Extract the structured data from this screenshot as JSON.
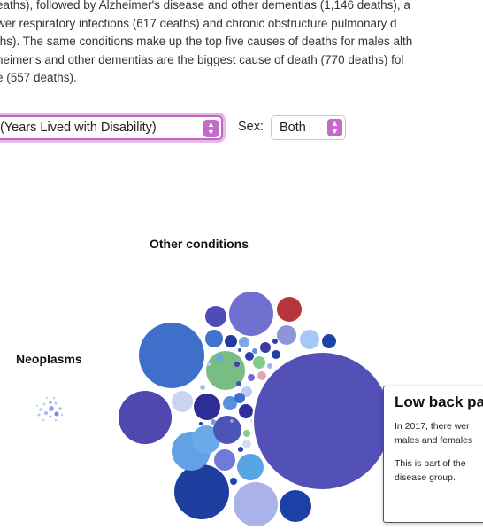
{
  "intro": {
    "lines": [
      "eaths), followed by Alzheimer's disease and other dementias (1,146 deaths), a",
      "wer respiratory infections (617 deaths) and chronic obstructure pulmonary d",
      "ths). The same conditions make up the top five causes of deaths for males alth",
      "heimer's and other dementias are the biggest cause of death (770 deaths) fol",
      "e (557 deaths)."
    ]
  },
  "controls": {
    "measure_value": "(Years Lived with Disability)",
    "sex_label": "Sex:",
    "sex_value": "Both"
  },
  "groups": {
    "other_conditions": "Other conditions",
    "neoplasms": "Neoplasms"
  },
  "tooltip": {
    "title": "Low back pa",
    "line1": "In 2017, there wer",
    "line2": "males and females",
    "line3": "This is part of the",
    "line4": "disease group."
  },
  "colors": {
    "accent": "#c46ac8",
    "large_bubble": "#5350b8",
    "highlight_border": "#ffffff"
  }
}
